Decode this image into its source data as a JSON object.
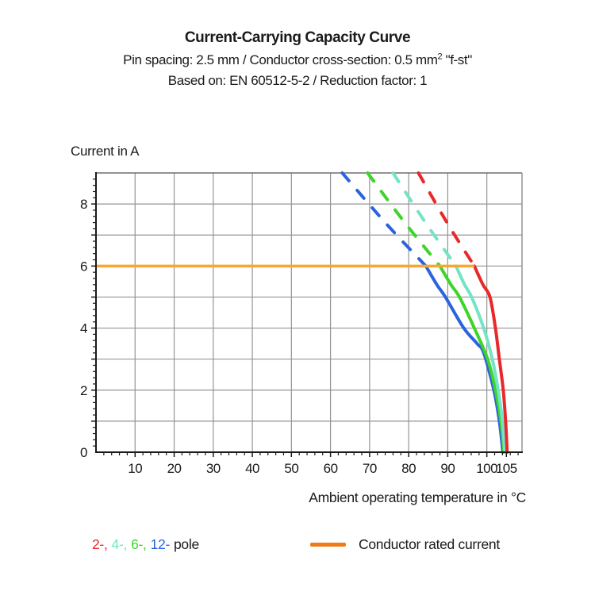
{
  "chart_data": {
    "type": "line",
    "title": "Current-Carrying Capacity Curve",
    "subtitle_line1": {
      "pre": "Pin spacing: 2.5 mm / Conductor cross-section: 0.5 mm",
      "sup": "2",
      "post": " \"f-st\""
    },
    "subtitle_line2": "Based on: EN 60512-5-2 / Reduction factor: 1",
    "ylabel": "Current in A",
    "xlabel": "Ambient operating temperature in °C",
    "xlim": [
      0,
      109
    ],
    "ylim": [
      0,
      9
    ],
    "grid": true,
    "x_gridlines": [
      10,
      20,
      30,
      40,
      50,
      60,
      70,
      80,
      90,
      100
    ],
    "x_ticks": [
      {
        "value": 10,
        "label": "10"
      },
      {
        "value": 20,
        "label": "20"
      },
      {
        "value": 30,
        "label": "30"
      },
      {
        "value": 40,
        "label": "40"
      },
      {
        "value": 50,
        "label": "50"
      },
      {
        "value": 60,
        "label": "60"
      },
      {
        "value": 70,
        "label": "70"
      },
      {
        "value": 80,
        "label": "80"
      },
      {
        "value": 90,
        "label": "90"
      },
      {
        "value": 100,
        "label": "100"
      },
      {
        "value": 105,
        "label": "105"
      }
    ],
    "x_minor_step": 2,
    "y_gridlines": [
      1,
      2,
      3,
      4,
      5,
      6,
      7,
      8
    ],
    "y_ticks": [
      {
        "value": 0,
        "label": "0"
      },
      {
        "value": 2,
        "label": "2"
      },
      {
        "value": 4,
        "label": "4"
      },
      {
        "value": 6,
        "label": "6"
      },
      {
        "value": 8,
        "label": "8"
      }
    ],
    "y_minor_step": 0.2,
    "rated_current_line": {
      "y": 6,
      "x_start": 0,
      "x_end": 96.8,
      "color": "#F7A72F",
      "label": "Conductor rated current"
    },
    "series": [
      {
        "name": "2-pole",
        "color": "#E8292C",
        "dashed_above_rated": [
          [
            82.5,
            9
          ],
          [
            89.8,
            7.4
          ],
          [
            96.8,
            6
          ]
        ],
        "solid": [
          [
            96.8,
            6
          ],
          [
            99.0,
            5.4
          ],
          [
            100.8,
            5
          ],
          [
            102.2,
            4
          ],
          [
            103.2,
            3
          ],
          [
            104.2,
            2
          ],
          [
            104.8,
            1
          ],
          [
            105.2,
            0
          ]
        ]
      },
      {
        "name": "4-pole",
        "color": "#74E3C6",
        "dashed_above_rated": [
          [
            76,
            9
          ],
          [
            84.3,
            7.4
          ],
          [
            92.1,
            6
          ]
        ],
        "solid": [
          [
            92.1,
            6
          ],
          [
            94.3,
            5.4
          ],
          [
            96.1,
            5
          ],
          [
            99.2,
            4
          ],
          [
            101.4,
            3
          ],
          [
            102.9,
            2
          ],
          [
            104.0,
            1
          ],
          [
            104.6,
            0
          ]
        ]
      },
      {
        "name": "6-pole",
        "color": "#3FD42C",
        "dashed_above_rated": [
          [
            69.5,
            9
          ],
          [
            79.0,
            7.4
          ],
          [
            88.0,
            6
          ]
        ],
        "solid": [
          [
            88.0,
            6
          ],
          [
            90.8,
            5.4
          ],
          [
            93.0,
            5
          ],
          [
            96.8,
            4
          ],
          [
            100.2,
            3
          ],
          [
            102.2,
            2
          ],
          [
            103.6,
            1
          ],
          [
            104.4,
            0
          ]
        ]
      },
      {
        "name": "12-pole",
        "color": "#2B63DE",
        "dashed_above_rated": [
          [
            63,
            9
          ],
          [
            74.0,
            7.4
          ],
          [
            84.4,
            6
          ]
        ],
        "solid": [
          [
            84.4,
            6
          ],
          [
            87.2,
            5.4
          ],
          [
            89.4,
            5
          ],
          [
            94.1,
            4
          ],
          [
            97.5,
            3.5
          ],
          [
            99.2,
            3.2
          ],
          [
            101.8,
            2
          ],
          [
            103.2,
            1
          ],
          [
            104.1,
            0
          ]
        ]
      }
    ],
    "style": {
      "grid_color": "#949494",
      "axis_color": "#1a1a1a",
      "border_top_color": "#6e6e6e",
      "border_right_color": "#949494",
      "tick_label_color": "#1a1a1a",
      "curve_width": 4,
      "rated_line_width": 3.5
    }
  },
  "legend": {
    "poles": [
      {
        "label": "2-,",
        "color": "#E8292C"
      },
      {
        "label": "4-,",
        "color": "#74E3C6"
      },
      {
        "label": "6-,",
        "color": "#3FD42C"
      },
      {
        "label": "12-",
        "color": "#2B63DE"
      }
    ],
    "poles_suffix": "pole",
    "rated_label": "Conductor rated current",
    "rated_swatch_color": "#EF7B16"
  }
}
